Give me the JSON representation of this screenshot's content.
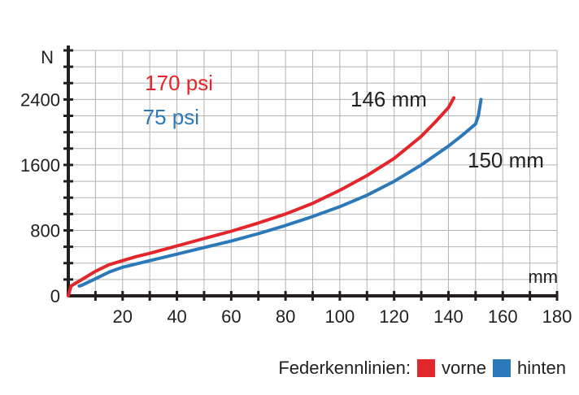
{
  "chart_data": {
    "type": "line",
    "xlabel": "mm",
    "ylabel": "N",
    "xlim": [
      0,
      180
    ],
    "ylim": [
      0,
      3000
    ],
    "xticks": [
      "20",
      "40",
      "60",
      "80",
      "100",
      "120",
      "140",
      "160",
      "180"
    ],
    "yticks": [
      "0",
      "800",
      "1600",
      "2400"
    ],
    "grid": true,
    "series": [
      {
        "name": "vorne",
        "color": "#e3262b",
        "x": [
          0,
          1,
          5,
          10,
          15,
          20,
          25,
          30,
          40,
          50,
          60,
          70,
          80,
          90,
          100,
          110,
          120,
          130,
          135,
          140,
          142
        ],
        "y": [
          0,
          120,
          200,
          300,
          380,
          430,
          480,
          520,
          610,
          700,
          790,
          890,
          1000,
          1130,
          1290,
          1470,
          1680,
          1950,
          2120,
          2300,
          2420
        ]
      },
      {
        "name": "hinten",
        "color": "#2b79b9",
        "x": [
          4,
          5,
          10,
          15,
          20,
          30,
          40,
          50,
          60,
          70,
          80,
          90,
          100,
          110,
          120,
          130,
          140,
          145,
          150,
          151,
          152
        ],
        "y": [
          120,
          130,
          210,
          290,
          350,
          430,
          510,
          590,
          670,
          760,
          860,
          970,
          1090,
          1230,
          1400,
          1600,
          1830,
          1960,
          2100,
          2200,
          2400
        ]
      }
    ],
    "annotations": {
      "pressure_front": "170 psi",
      "pressure_rear": "75 psi",
      "travel_front": "146 mm",
      "travel_rear": "150 mm"
    },
    "legend": {
      "title": "Federkennlinien:",
      "items": [
        "vorne",
        "hinten"
      ],
      "placement": "bottom-right"
    }
  }
}
